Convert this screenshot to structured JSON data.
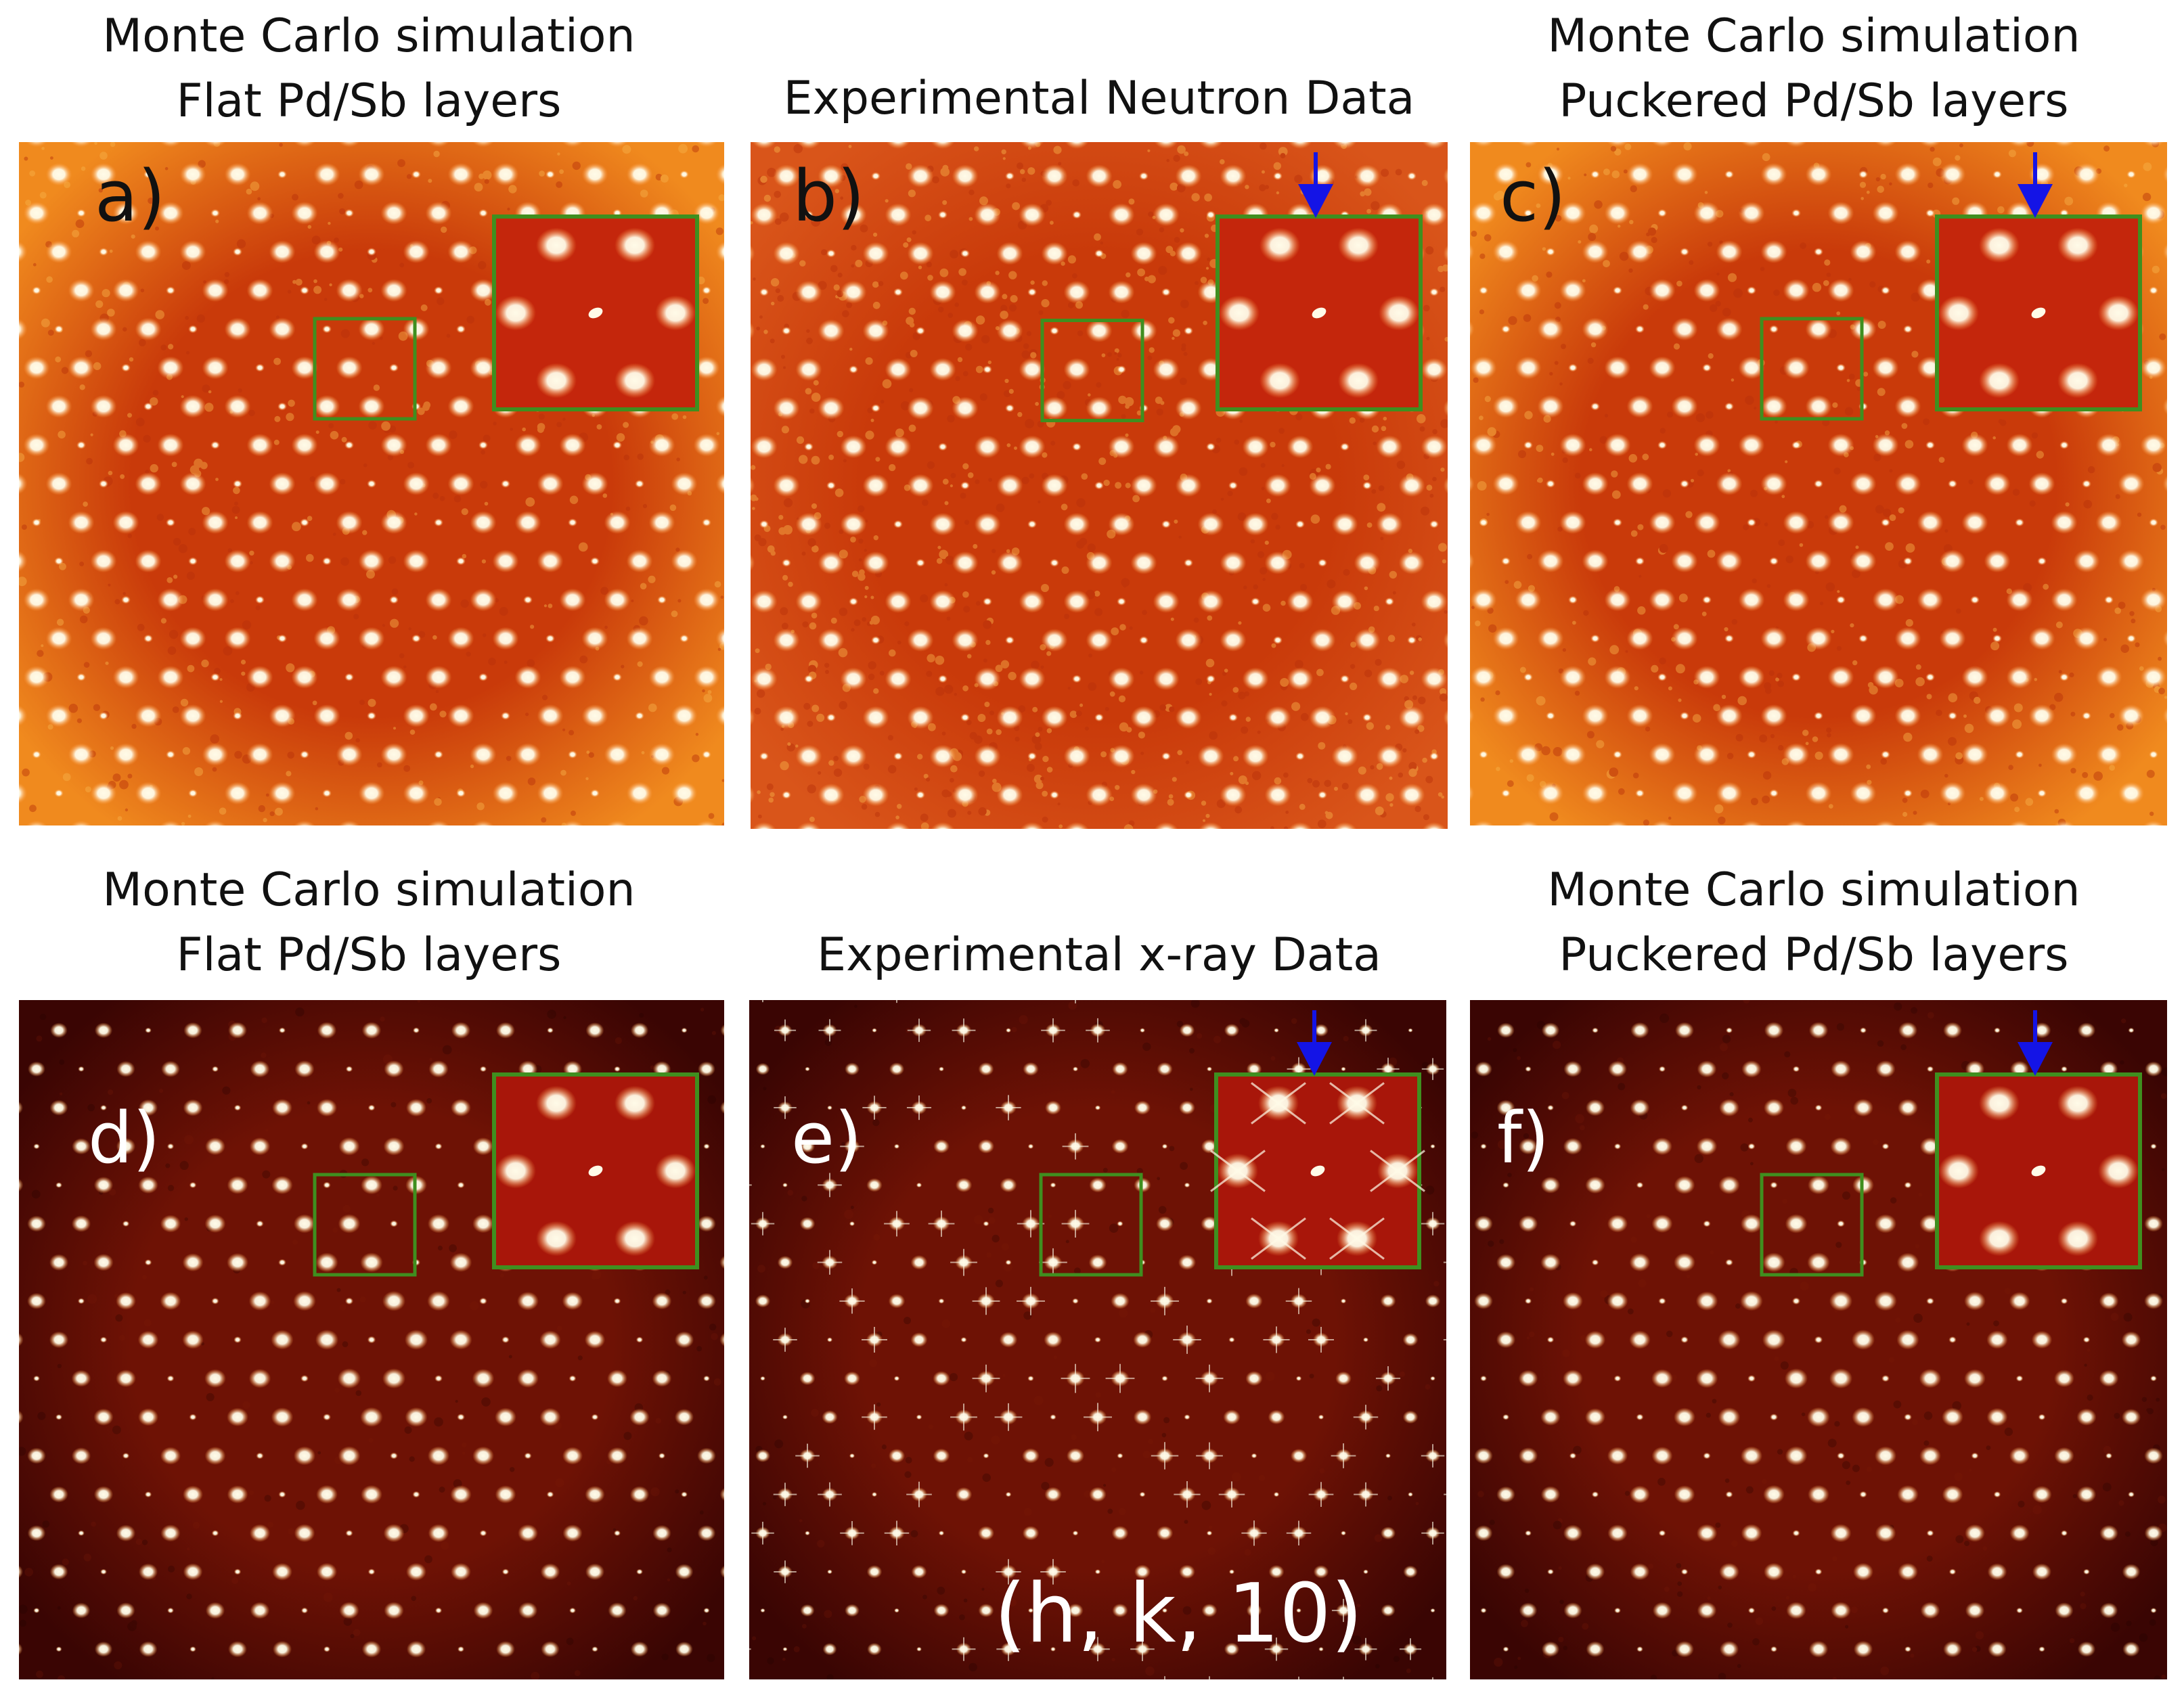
{
  "panels": [
    {
      "id": "a",
      "label": "a)",
      "title_lines": [
        "Monte Carlo simulation",
        "Flat Pd/Sb layers"
      ],
      "palette": "neutron",
      "noise": 0.55,
      "spot_scale": 1.0,
      "streaks": false,
      "arrow": false,
      "letter_color": "#111111"
    },
    {
      "id": "b",
      "label": "b)",
      "title_lines": [
        "Experimental Neutron Data"
      ],
      "palette": "neutron",
      "noise": 1.0,
      "spot_scale": 1.0,
      "streaks": false,
      "arrow": true,
      "letter_color": "#111111"
    },
    {
      "id": "c",
      "label": "c)",
      "title_lines": [
        "Monte Carlo simulation",
        "Puckered Pd/Sb layers"
      ],
      "palette": "neutron",
      "noise": 0.55,
      "spot_scale": 1.0,
      "streaks": false,
      "arrow": true,
      "letter_color": "#111111"
    },
    {
      "id": "d",
      "label": "d)",
      "title_lines": [
        "Monte Carlo simulation",
        "Flat Pd/Sb layers"
      ],
      "palette": "xray",
      "noise": 0.2,
      "spot_scale": 0.75,
      "streaks": false,
      "arrow": false,
      "letter_color": "#ffffff"
    },
    {
      "id": "e",
      "label": "e)",
      "title_lines": [
        "Experimental x-ray Data"
      ],
      "palette": "xray",
      "noise": 0.2,
      "spot_scale": 0.6,
      "streaks": true,
      "arrow": true,
      "letter_color": "#ffffff"
    },
    {
      "id": "f",
      "label": "f)",
      "title_lines": [
        "Monte Carlo simulation",
        "Puckered Pd/Sb layers"
      ],
      "palette": "xray",
      "noise": 0.25,
      "spot_scale": 0.75,
      "streaks": false,
      "arrow": true,
      "letter_color": "#ffffff"
    }
  ],
  "annotation": {
    "text": "(h, k, 10)"
  },
  "colors": {
    "neutron_bg": "#f08a1e",
    "neutron_center": "#c93a0a",
    "neutron_exp_bg": "#d9551a",
    "xray_bg": "#3a0503",
    "xray_center": "#6e1205",
    "spot_core": "#fffbe8",
    "spot_glow": "#ff9a3a",
    "box": "#3f8f1f",
    "arrow": "#1414e6",
    "inset_bg_neutron": "#c4260c",
    "inset_bg_xray": "#a8160a"
  }
}
